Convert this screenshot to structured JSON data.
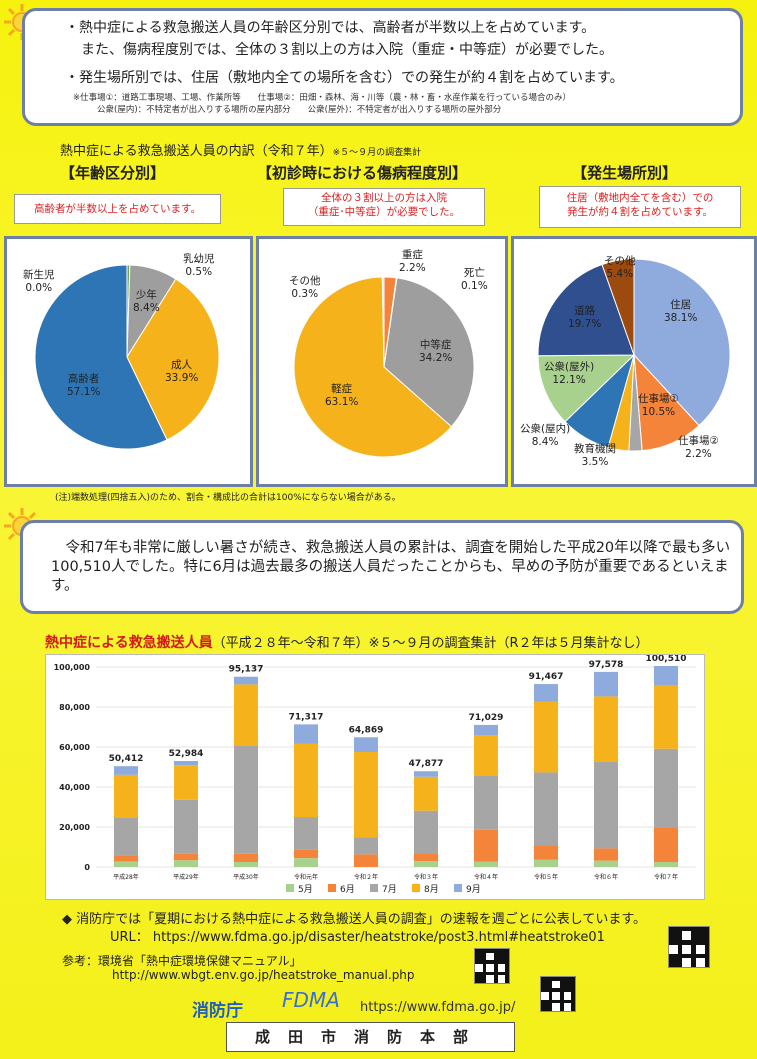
{
  "summary": {
    "line1": "・熱中症による救急搬送人員の年齢区分別では、高齢者が半数以上を占めています。",
    "line2": "また、傷病程度別では、全体の３割以上の方は入院（重症・中等症）が必要でした。",
    "line3": "・発生場所別では、住居（敷地内全ての場所を含む）での発生が約４割を占めています。",
    "note1": "※仕事場①：道路工事現場、工場、作業所等　　仕事場②：田畑・森林、海・川等（農・林・畜・水産作業を行っている場合のみ）",
    "note2": "公衆(屋内)：不特定者が出入りする場所の屋内部分　　公衆(屋外)：不特定者が出入りする場所の屋外部分"
  },
  "breakdown": {
    "title": "熱中症による救急搬送人員の内訳（令和７年）",
    "title_note": "※５～９月の調査集計",
    "age_head": "【年齢区分別】",
    "age_note": "高齢者が半数以上を占めています。",
    "severity_head": "【初診時における傷病程度別】",
    "severity_note1": "全体の３割以上の方は入院",
    "severity_note2": "（重症･中等症）が必要でした。",
    "place_head": "【発生場所別】",
    "place_note1": "住居（敷地内全てを含む）での",
    "place_note2": "発生が約４割を占めています。",
    "footnote": "(注)端数処理(四捨五入)のため、割合・構成比の合計は100%にならない場合がある。"
  },
  "chart_data": [
    {
      "type": "pie",
      "title": "年齢区分別",
      "labels": [
        "新生児",
        "乳幼児",
        "少年",
        "成人",
        "高齢者"
      ],
      "values": [
        0.0,
        0.5,
        8.4,
        33.9,
        57.1
      ],
      "value_labels": [
        "0.0%",
        "0.5%",
        "8.4%",
        "33.9%",
        "57.1%"
      ],
      "colors": [
        "#7f7f7f",
        "#6aa84f",
        "#9e9e9e",
        "#f5b21b",
        "#2e75b6"
      ]
    },
    {
      "type": "pie",
      "title": "初診時における傷病程度別",
      "labels": [
        "重症",
        "死亡",
        "中等症",
        "軽症",
        "その他"
      ],
      "values": [
        2.2,
        0.1,
        34.2,
        63.1,
        0.3
      ],
      "value_labels": [
        "2.2%",
        "0.1%",
        "34.2%",
        "63.1%",
        "0.3%"
      ],
      "colors": [
        "#f4843a",
        "#b7b7b7",
        "#9e9e9e",
        "#f5b21b",
        "#dddddd"
      ]
    },
    {
      "type": "pie",
      "title": "発生場所別",
      "labels": [
        "住居",
        "仕事場①",
        "仕事場②",
        "教育機関",
        "公衆(屋内)",
        "公衆(屋外)",
        "道路",
        "その他"
      ],
      "values": [
        38.1,
        10.5,
        2.2,
        3.5,
        8.4,
        12.1,
        19.7,
        5.4
      ],
      "value_labels": [
        "38.1%",
        "10.5%",
        "2.2%",
        "3.5%",
        "8.4%",
        "12.1%",
        "19.7%",
        "5.4%"
      ],
      "colors": [
        "#8faadc",
        "#f4843a",
        "#a6a6a6",
        "#f5b21b",
        "#2e75b6",
        "#a9d18e",
        "#2f4f8f",
        "#9c4a0e"
      ]
    },
    {
      "type": "bar",
      "stacked": true,
      "title": "熱中症による救急搬送人員",
      "subtitle": "（平成２８年～令和７年）※５～９月の調査集計（R２年は５月集計なし）",
      "categories": [
        "平成28年",
        "平成29年",
        "平成30年",
        "令和元年",
        "令和２年",
        "令和３年",
        "令和４年",
        "令和５年",
        "令和６年",
        "令和７年"
      ],
      "totals": [
        50412,
        52984,
        95137,
        71317,
        64869,
        47877,
        71029,
        91467,
        97578,
        100510
      ],
      "total_labels": [
        "50,412",
        "52,984",
        "95,137",
        "71,317",
        "64,869",
        "47,877",
        "71,029",
        "91,467",
        "97,578",
        "100,510"
      ],
      "series": [
        {
          "name": "5月",
          "color": "#a9d18e",
          "values": [
            2788,
            3401,
            2504,
            4448,
            0,
            2937,
            2668,
            3647,
            3197,
            2496
          ]
        },
        {
          "name": "6月",
          "color": "#f4843a",
          "values": [
            3015,
            3481,
            4151,
            4101,
            6335,
            3845,
            15969,
            7117,
            6099,
            17229
          ]
        },
        {
          "name": "7月",
          "color": "#a6a6a6",
          "values": [
            19008,
            26702,
            54220,
            16431,
            8388,
            21372,
            27190,
            36549,
            43195,
            39375
          ]
        },
        {
          "name": "8月",
          "color": "#f5b21b",
          "values": [
            21299,
            17302,
            30410,
            36755,
            42789,
            16960,
            20020,
            35439,
            32806,
            31526
          ]
        },
        {
          "name": "9月",
          "color": "#8faadc",
          "values": [
            4302,
            2098,
            3852,
            9582,
            7357,
            2763,
            5182,
            8715,
            12281,
            9884
          ]
        }
      ],
      "ylim": [
        0,
        100000
      ],
      "yticks": [
        0,
        20000,
        40000,
        60000,
        80000,
        100000
      ],
      "ytick_labels": [
        "0",
        "20,000",
        "40,000",
        "60,000",
        "80,000",
        "100,000"
      ],
      "legend_position": "bottom"
    }
  ],
  "message": {
    "text": "令和7年も非常に厳しい暑さが続き、救急搬送人員の累計は、調査を開始した平成20年以降で最も多い100,510人でした。特に6月は過去最多の搬送人員だったことからも、早めの予防が重要であるといえます。"
  },
  "footer": {
    "publish": "◆ 消防庁では「夏期における熱中症による救急搬送人員の調査」の速報を週ごとに公表しています。",
    "url_line": "URL： https://www.fdma.go.jp/disaster/heatstroke/post3.html#heatstroke01",
    "ref_line1": "参考：環境省「熱中症環境保健マニュアル」",
    "ref_line2": "http://www.wbgt.env.go.jp/heatstroke_manual.php",
    "agency": "消防庁",
    "fdma": "FDMA",
    "fdma_url": "https://www.fdma.go.jp/",
    "hq": "成田市消防本部"
  }
}
